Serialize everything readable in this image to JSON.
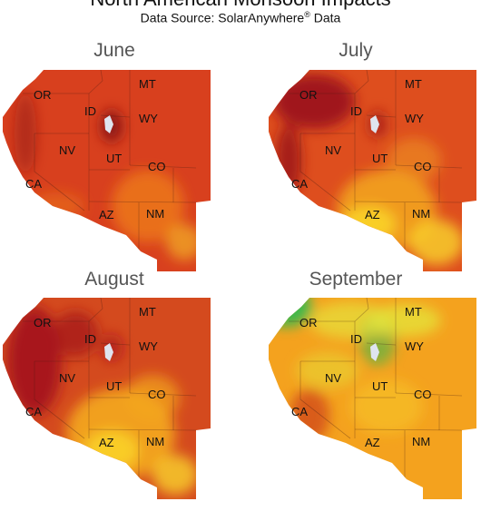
{
  "title": "North American Monsoon Impacts",
  "subtitle": {
    "text": "Data Source: SolarAnywhere",
    "reg": "®",
    "suffix": " Data"
  },
  "panels": [
    {
      "month": "June",
      "colors": {
        "base": "#d8401e",
        "dark": "#8e1216",
        "light": "#ee7a1a",
        "bright": "#f8c524",
        "green": "#dcdc2c"
      }
    },
    {
      "month": "July",
      "colors": {
        "base": "#de4e1e",
        "dark": "#a0161a",
        "light": "#f2a21e",
        "bright": "#f9d42a",
        "green": "#e6e030"
      }
    },
    {
      "month": "August",
      "colors": {
        "base": "#d44a1e",
        "dark": "#a8161b",
        "light": "#f4a81f",
        "bright": "#f9d22a",
        "green": "#e8e23a"
      }
    },
    {
      "month": "September",
      "colors": {
        "base": "#f4a21e",
        "dark": "#d24a1c",
        "light": "#f8cc28",
        "bright": "#e6e23a",
        "green": "#3cb84c"
      }
    }
  ],
  "states": {
    "or": "OR",
    "id": "ID",
    "mt": "MT",
    "wy": "WY",
    "nv": "NV",
    "ut": "UT",
    "co": "CO",
    "ca": "CA",
    "az": "AZ",
    "nm": "NM"
  }
}
